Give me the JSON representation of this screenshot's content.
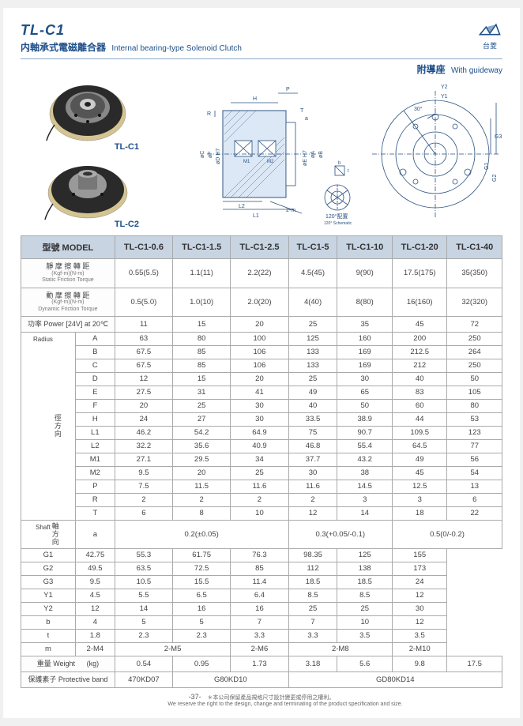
{
  "header": {
    "model_title": "TL-C1",
    "subtitle_cn": "内軸承式電磁離合器",
    "subtitle_en": "Internal bearing-type Solenoid Clutch",
    "logo_text": "台菱",
    "guideway_cn": "附導座",
    "guideway_en": "With guideway"
  },
  "photos": {
    "label1": "TL-C1",
    "label2": "TL-C2"
  },
  "tech": {
    "label_120": "120°配置",
    "label_120_sub": "120° Schematic",
    "label_2m": "2-m"
  },
  "table": {
    "model_label": "型號 MODEL",
    "models": [
      "TL-C1-0.6",
      "TL-C1-1.5",
      "TL-C1-2.5",
      "TL-C1-5",
      "TL-C1-10",
      "TL-C1-20",
      "TL-C1-40"
    ],
    "static_torque_label": "靜 摩 擦 轉 距",
    "static_torque_sub": "Static Friction Torque",
    "static_torque_unit": "(Kgf-m)(N-m)",
    "static_torque": [
      "0.55(5.5)",
      "1.1(11)",
      "2.2(22)",
      "4.5(45)",
      "9(90)",
      "17.5(175)",
      "35(350)"
    ],
    "dyn_torque_label": "動 摩 擦 轉 距",
    "dyn_torque_sub": "Dynamic Friction Torque",
    "dyn_torque_unit": "(Kgf-m)(N-m)",
    "dyn_torque": [
      "0.5(5.0)",
      "1.0(10)",
      "2.0(20)",
      "4(40)",
      "8(80)",
      "16(160)",
      "32(320)"
    ],
    "power_label": "功率 Power [24V] at 20℃",
    "power": [
      "11",
      "15",
      "20",
      "25",
      "35",
      "45",
      "72"
    ],
    "radius_label_cn": "徑方向",
    "radius_label_en": "Radius",
    "shaft_label_cn": "軸方向",
    "shaft_label_en": "Shaft",
    "radius_rows": [
      {
        "k": "A",
        "v": [
          "63",
          "80",
          "100",
          "125",
          "160",
          "200",
          "250"
        ]
      },
      {
        "k": "B",
        "v": [
          "67.5",
          "85",
          "106",
          "133",
          "169",
          "212.5",
          "264"
        ]
      },
      {
        "k": "C",
        "v": [
          "67.5",
          "85",
          "106",
          "133",
          "169",
          "212",
          "250"
        ]
      },
      {
        "k": "D",
        "v": [
          "12",
          "15",
          "20",
          "25",
          "30",
          "40",
          "50"
        ]
      },
      {
        "k": "E",
        "v": [
          "27.5",
          "31",
          "41",
          "49",
          "65",
          "83",
          "105"
        ]
      },
      {
        "k": "F",
        "v": [
          "20",
          "25",
          "30",
          "40",
          "50",
          "60",
          "80"
        ]
      },
      {
        "k": "H",
        "v": [
          "24",
          "27",
          "30",
          "33.5",
          "38.9",
          "44",
          "53"
        ]
      },
      {
        "k": "L1",
        "v": [
          "46.2",
          "54.2",
          "64.9",
          "75",
          "90.7",
          "109.5",
          "123"
        ]
      },
      {
        "k": "L2",
        "v": [
          "32.2",
          "35.6",
          "40.9",
          "46.8",
          "55.4",
          "64.5",
          "77"
        ]
      },
      {
        "k": "M1",
        "v": [
          "27.1",
          "29.5",
          "34",
          "37.7",
          "43.2",
          "49",
          "56"
        ]
      },
      {
        "k": "M2",
        "v": [
          "9.5",
          "20",
          "25",
          "30",
          "38",
          "45",
          "54"
        ]
      },
      {
        "k": "P",
        "v": [
          "7.5",
          "11.5",
          "11.6",
          "11.6",
          "14.5",
          "12.5",
          "13"
        ]
      },
      {
        "k": "R",
        "v": [
          "2",
          "2",
          "2",
          "2",
          "3",
          "3",
          "6"
        ]
      },
      {
        "k": "T",
        "v": [
          "6",
          "8",
          "10",
          "12",
          "14",
          "18",
          "22"
        ]
      }
    ],
    "a_label": "a",
    "a_vals": [
      "0.2(±0.05)",
      "0.3(+0.05/-0.1)",
      "0.5(0/-0.2)"
    ],
    "shaft_rows": [
      {
        "k": "G1",
        "v": [
          "42.75",
          "55.3",
          "61.75",
          "76.3",
          "98.35",
          "125",
          "155"
        ]
      },
      {
        "k": "G2",
        "v": [
          "49.5",
          "63.5",
          "72.5",
          "85",
          "112",
          "138",
          "173"
        ]
      },
      {
        "k": "G3",
        "v": [
          "9.5",
          "10.5",
          "15.5",
          "11.4",
          "18.5",
          "18.5",
          "24"
        ]
      },
      {
        "k": "Y1",
        "v": [
          "4.5",
          "5.5",
          "6.5",
          "6.4",
          "8.5",
          "8.5",
          "12"
        ]
      },
      {
        "k": "Y2",
        "v": [
          "12",
          "14",
          "16",
          "16",
          "25",
          "25",
          "30"
        ]
      },
      {
        "k": "b",
        "v": [
          "4",
          "5",
          "5",
          "7",
          "7",
          "10",
          "12"
        ]
      },
      {
        "k": "t",
        "v": [
          "1.8",
          "2.3",
          "2.3",
          "3.3",
          "3.3",
          "3.5",
          "3.5"
        ]
      }
    ],
    "m_label": "m",
    "m_vals": [
      "2-M4",
      "2-M5",
      "2-M6",
      "2-M8",
      "2-M10"
    ],
    "weight_label": "重量 Weight",
    "weight_unit": "(kg)",
    "weight": [
      "0.54",
      "0.95",
      "1.73",
      "3.18",
      "5.6",
      "9.8",
      "17.5"
    ],
    "band_label": "保護素子 Protective band",
    "band": [
      "470KD07",
      "G80KD10",
      "GD80KD14"
    ]
  },
  "footer": {
    "page_num": "-37-",
    "note_cn": "＊本公司保留產品規格尺寸設計變更或停用之權利。",
    "note_en": "We reserve the right to the design, change and terminating of the product specification and size."
  },
  "colors": {
    "brand": "#1e4f8a",
    "th_bg": "#c8d4e2",
    "border": "#aaa"
  }
}
